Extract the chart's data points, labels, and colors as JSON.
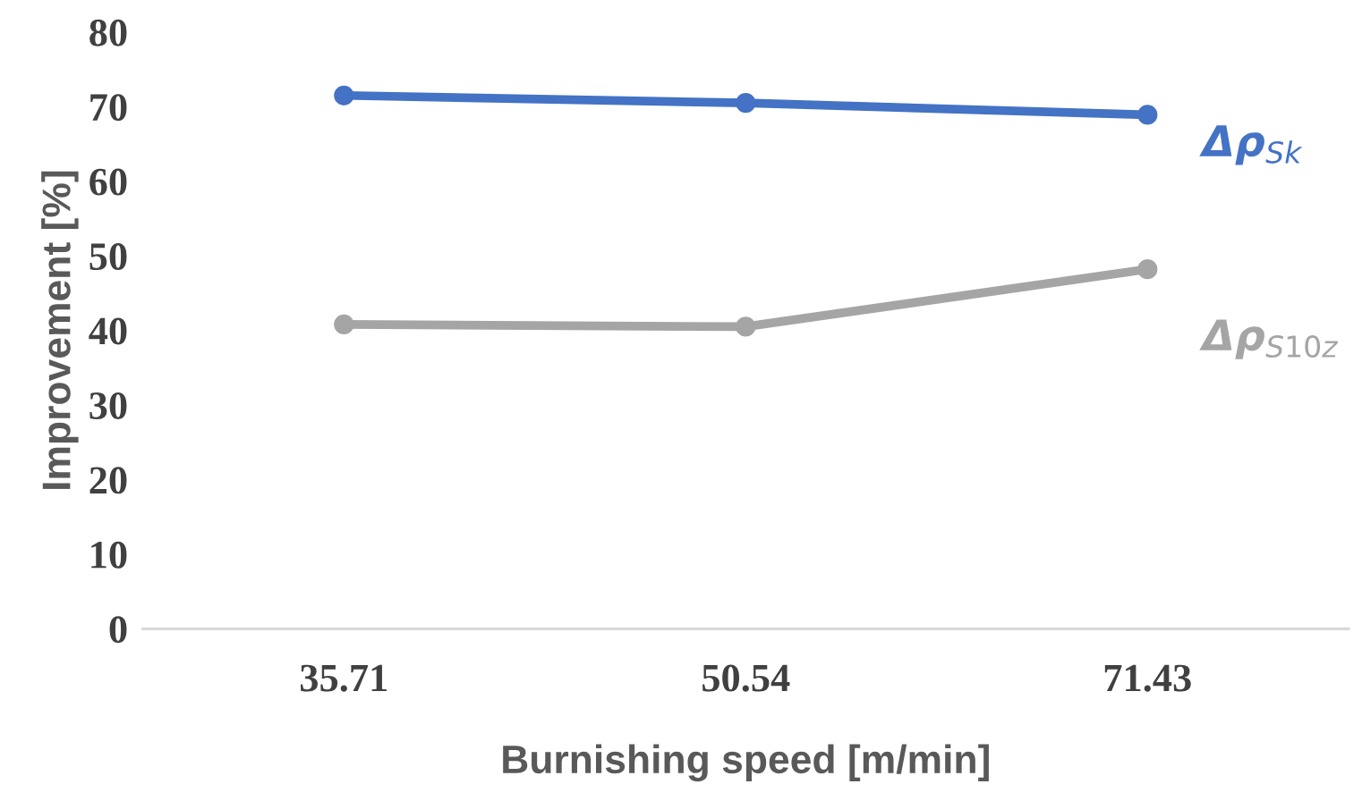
{
  "chart_data": {
    "type": "line",
    "xlabel": "Burnishing speed [m/min]",
    "ylabel": "Improvement [%]",
    "categories": [
      "35.71",
      "50.54",
      "71.43"
    ],
    "series": [
      {
        "name": "Δρ$_{Sk}$",
        "color": "#4472c4",
        "values": [
          71.5,
          70.5,
          68.9
        ]
      },
      {
        "name": "Δρ$_{S10z}$",
        "color": "#a5a5a5",
        "values": [
          40.8,
          40.5,
          48.2
        ]
      }
    ],
    "ylim": [
      0,
      80
    ],
    "yticks": [
      0,
      10,
      20,
      30,
      40,
      50,
      60,
      70,
      80
    ],
    "grid": false,
    "legend": false,
    "marker": "circle",
    "line_style": "solid"
  }
}
